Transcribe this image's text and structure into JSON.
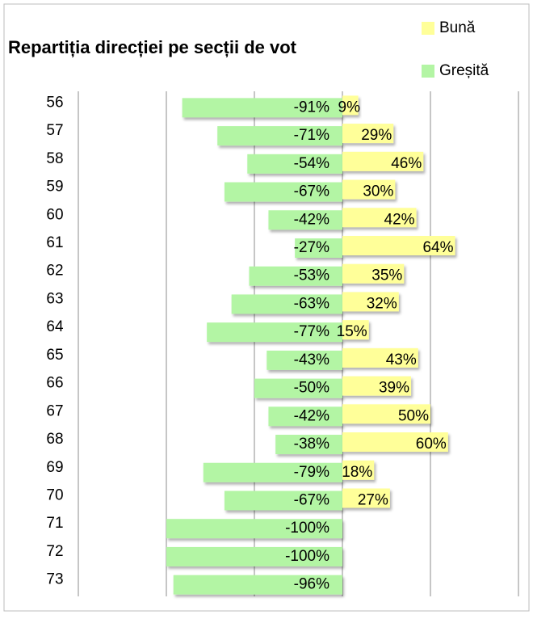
{
  "chart_data": {
    "type": "bar",
    "orientation": "horizontal",
    "stacked": false,
    "title": "Repartiția direcției pe secții de vot",
    "categories": [
      "56",
      "57",
      "58",
      "59",
      "60",
      "61",
      "62",
      "63",
      "64",
      "65",
      "66",
      "67",
      "68",
      "69",
      "70",
      "71",
      "72",
      "73"
    ],
    "series": [
      {
        "name": "Bună",
        "color": "#ffff99",
        "values": [
          9,
          29,
          46,
          30,
          42,
          64,
          35,
          32,
          15,
          43,
          39,
          50,
          60,
          18,
          27,
          null,
          null,
          null
        ],
        "value_labels": [
          "9%",
          "29%",
          "46%",
          "30%",
          "42%",
          "64%",
          "35%",
          "32%",
          "15%",
          "43%",
          "39%",
          "50%",
          "60%",
          "18%",
          "27%",
          null,
          null,
          null
        ]
      },
      {
        "name": "Greșită",
        "color": "#b3f5a4",
        "values": [
          -91,
          -71,
          -54,
          -67,
          -42,
          -27,
          -53,
          -63,
          -77,
          -43,
          -50,
          -42,
          -38,
          -79,
          -67,
          -100,
          -100,
          -96
        ],
        "value_labels": [
          "-91%",
          "-71%",
          "-54%",
          "-67%",
          "-42%",
          "-27%",
          "-53%",
          "-63%",
          "-77%",
          "-43%",
          "-50%",
          "-42%",
          "-38%",
          "-79%",
          "-67%",
          "-100%",
          "-100%",
          "-96%"
        ]
      }
    ],
    "xlim": [
      -150,
      100
    ],
    "xticks": [
      -150,
      -100,
      -50,
      0,
      50,
      100
    ],
    "grid": true,
    "legend": "top-right"
  }
}
